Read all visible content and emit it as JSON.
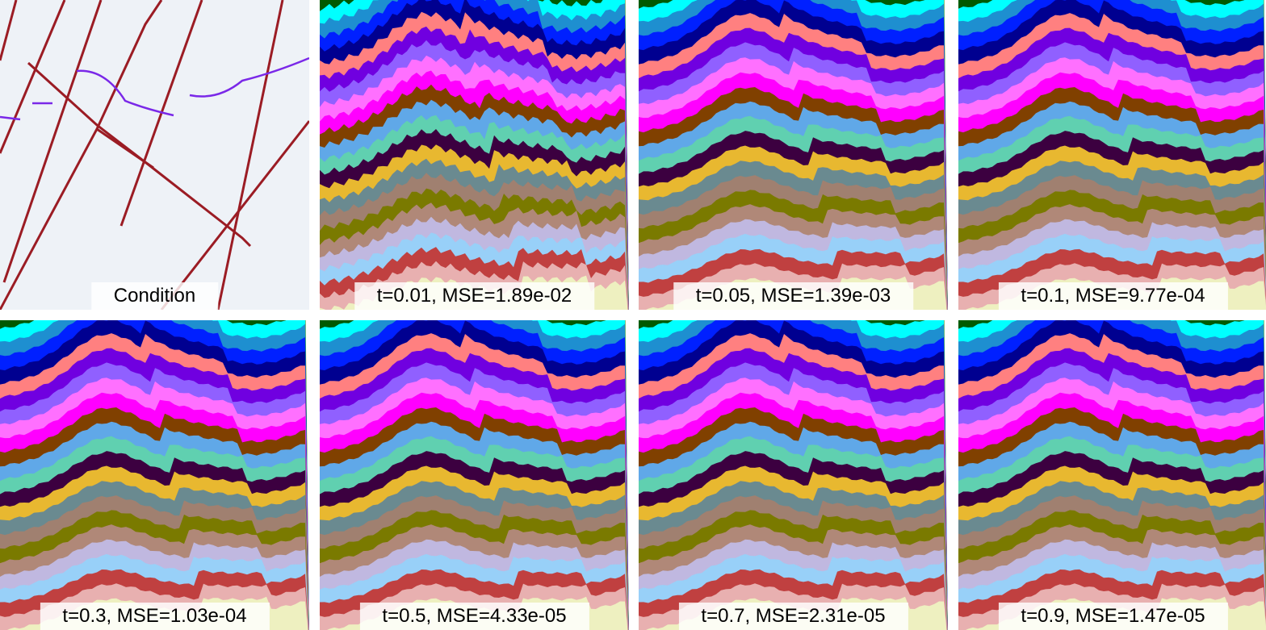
{
  "panels": [
    {
      "caption": "Condition"
    },
    {
      "caption": "t=0.01, MSE=1.89e-02"
    },
    {
      "caption": "t=0.05, MSE=1.39e-03"
    },
    {
      "caption": "t=0.1, MSE=9.77e-04"
    },
    {
      "caption": "t=0.3, MSE=1.03e-04"
    },
    {
      "caption": "t=0.5, MSE=4.33e-05"
    },
    {
      "caption": "t=0.7, MSE=2.31e-05"
    },
    {
      "caption": "t=0.9, MSE=1.47e-05"
    }
  ]
}
